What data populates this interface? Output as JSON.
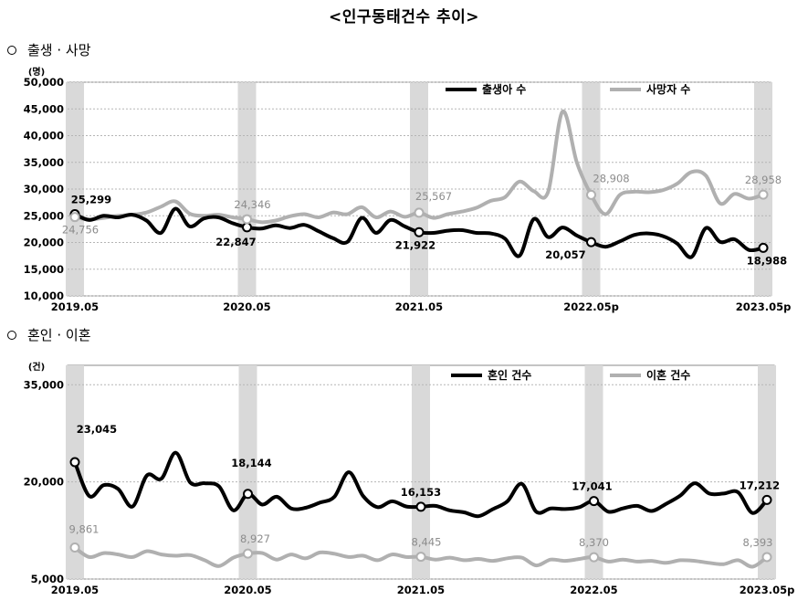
{
  "title": "<인구동태건수 추이>",
  "sections": [
    {
      "title": "출생 · 사망"
    },
    {
      "title": "혼인 · 이혼"
    }
  ],
  "chart_data": [
    {
      "type": "line",
      "unit": "(명)",
      "ylim": [
        10000,
        50000
      ],
      "yticks": [
        "10,000",
        "15,000",
        "20,000",
        "25,000",
        "30,000",
        "35,000",
        "40,000",
        "45,000",
        "50,000"
      ],
      "ytick_values": [
        10000,
        15000,
        20000,
        25000,
        30000,
        35000,
        40000,
        45000,
        50000
      ],
      "xtick_labels": [
        "2019.05",
        "2020.05",
        "2021.05",
        "2022.05p",
        "2023.05p"
      ],
      "xtick_index": [
        0,
        12,
        24,
        36,
        48
      ],
      "legend_position": "top-right",
      "grid": true,
      "series": [
        {
          "name": "출생아 수",
          "color": "#000000",
          "values": [
            25299,
            24200,
            25000,
            24700,
            25200,
            24100,
            21800,
            26300,
            23000,
            24500,
            24700,
            23600,
            22847,
            22600,
            23200,
            22700,
            23300,
            22100,
            20800,
            20100,
            24600,
            21800,
            24200,
            23000,
            21922,
            21800,
            22200,
            22300,
            21800,
            21700,
            20700,
            17500,
            24400,
            21000,
            22800,
            21300,
            20057,
            19200,
            20200,
            21400,
            21700,
            21200,
            19800,
            17300,
            22700,
            20100,
            20600,
            18600,
            18988
          ]
        },
        {
          "name": "사망자 수",
          "color": "#b0b0b0",
          "values": [
            24756,
            24300,
            24600,
            25000,
            25200,
            25600,
            26700,
            27700,
            25400,
            25000,
            25200,
            24700,
            24346,
            23800,
            24100,
            24900,
            25300,
            24700,
            25600,
            25300,
            26600,
            24700,
            25800,
            24800,
            25567,
            24600,
            25300,
            25800,
            26500,
            27800,
            28500,
            31400,
            29600,
            29500,
            44500,
            35000,
            28908,
            25300,
            28900,
            29500,
            29400,
            29800,
            31000,
            33200,
            32500,
            27300,
            29100,
            28200,
            28958
          ]
        }
      ],
      "annotations": [
        {
          "series": 0,
          "index": 0,
          "label": "25,299"
        },
        {
          "series": 0,
          "index": 12,
          "label": "22,847"
        },
        {
          "series": 0,
          "index": 24,
          "label": "21,922"
        },
        {
          "series": 0,
          "index": 36,
          "label": "20,057"
        },
        {
          "series": 0,
          "index": 48,
          "label": "18,988"
        },
        {
          "series": 1,
          "index": 0,
          "label": "24,756"
        },
        {
          "series": 1,
          "index": 12,
          "label": "24,346"
        },
        {
          "series": 1,
          "index": 24,
          "label": "25,567"
        },
        {
          "series": 1,
          "index": 36,
          "label": "28,908"
        },
        {
          "series": 1,
          "index": 48,
          "label": "28,958"
        }
      ]
    },
    {
      "type": "line",
      "unit": "(건)",
      "ylim": [
        5000,
        38000
      ],
      "yticks": [
        "5,000",
        "20,000",
        "35,000"
      ],
      "ytick_values": [
        5000,
        20000,
        35000
      ],
      "xtick_labels": [
        "2019.05",
        "2020.05",
        "2021.05",
        "2022.05",
        "2023.05p"
      ],
      "xtick_index": [
        0,
        12,
        24,
        36,
        48
      ],
      "legend_position": "top-right",
      "grid": true,
      "series": [
        {
          "name": "혼인 건수",
          "color": "#000000",
          "values": [
            23045,
            17800,
            19500,
            18900,
            16200,
            21000,
            20500,
            24500,
            19900,
            19800,
            19300,
            15600,
            18144,
            16500,
            17700,
            15900,
            16000,
            16800,
            17700,
            21500,
            17800,
            16100,
            17000,
            16200,
            16153,
            16300,
            15600,
            15300,
            14700,
            15800,
            17000,
            19700,
            15400,
            15900,
            15800,
            16100,
            17041,
            15400,
            15900,
            16300,
            15500,
            16600,
            17900,
            19800,
            18200,
            18200,
            18400,
            15200,
            17212
          ]
        },
        {
          "name": "이혼 건수",
          "color": "#b0b0b0",
          "values": [
            9861,
            8400,
            9000,
            8800,
            8400,
            9300,
            8800,
            8600,
            8700,
            7900,
            7000,
            8300,
            8927,
            9000,
            8000,
            8800,
            8200,
            9100,
            8900,
            8400,
            8600,
            7900,
            8800,
            8400,
            8445,
            8000,
            8300,
            7900,
            8100,
            7800,
            8200,
            8300,
            7100,
            8000,
            7800,
            8100,
            8370,
            7700,
            8000,
            7700,
            7800,
            7500,
            7900,
            7800,
            7500,
            7300,
            7900,
            6900,
            8393
          ]
        }
      ],
      "annotations": [
        {
          "series": 0,
          "index": 0,
          "label": "23,045"
        },
        {
          "series": 0,
          "index": 12,
          "label": "18,144"
        },
        {
          "series": 0,
          "index": 24,
          "label": "16,153"
        },
        {
          "series": 0,
          "index": 36,
          "label": "17,041"
        },
        {
          "series": 0,
          "index": 48,
          "label": "17,212"
        },
        {
          "series": 1,
          "index": 0,
          "label": "9,861"
        },
        {
          "series": 1,
          "index": 12,
          "label": "8,927"
        },
        {
          "series": 1,
          "index": 24,
          "label": "8,445"
        },
        {
          "series": 1,
          "index": 36,
          "label": "8,370"
        },
        {
          "series": 1,
          "index": 48,
          "label": "8,393"
        }
      ]
    }
  ]
}
